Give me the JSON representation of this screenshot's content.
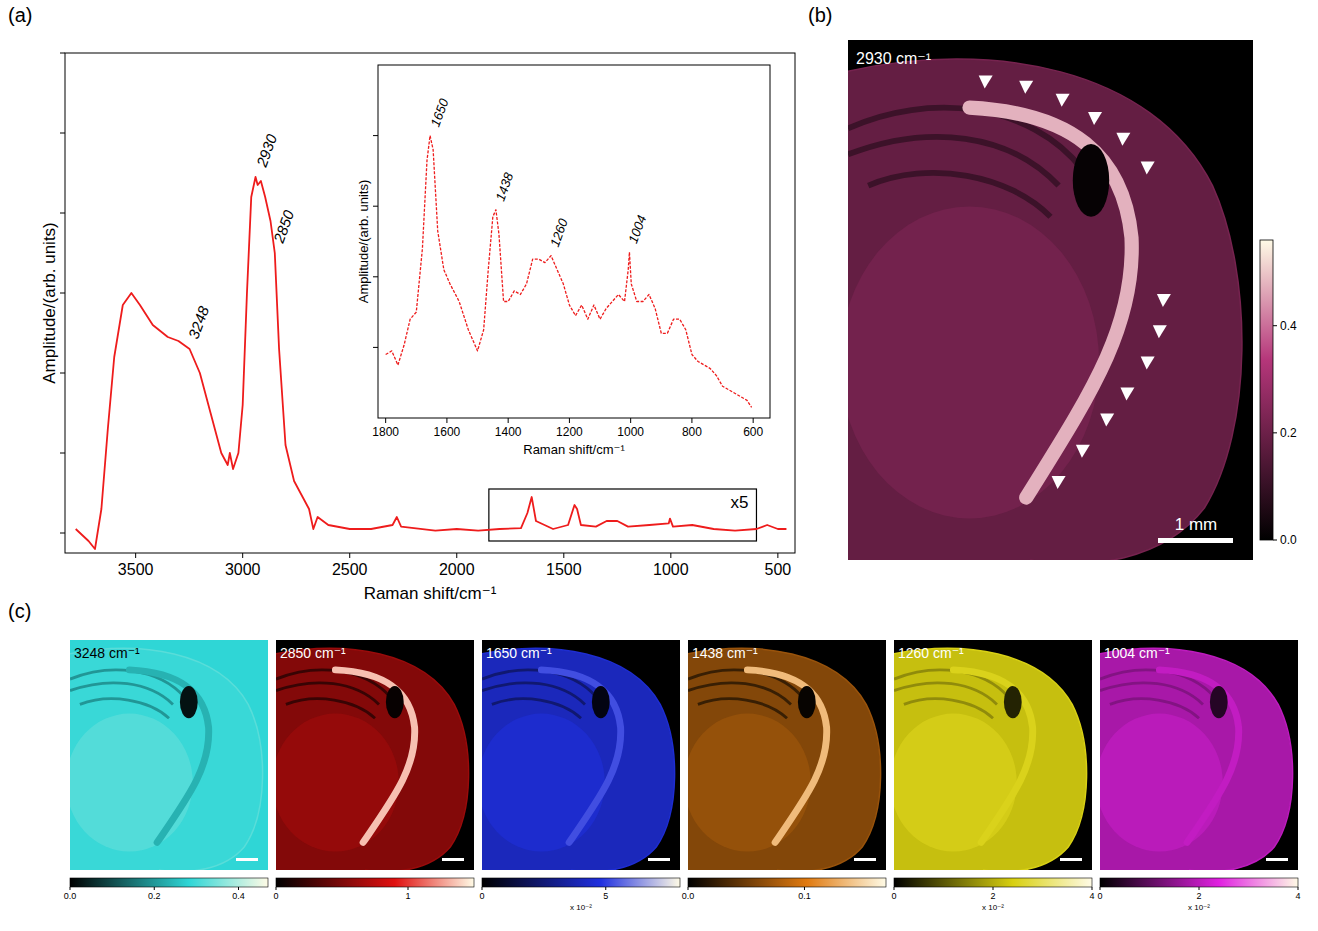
{
  "panel_labels": [
    "(a)",
    "(b)",
    "(c)"
  ],
  "chart_data": [
    {
      "type": "line",
      "x_label": "Raman shift/cm⁻¹",
      "y_label": "Amplitude/(arb. units)",
      "xlim": [
        3830,
        420
      ],
      "xticks": [
        3500,
        3000,
        2500,
        2000,
        1500,
        1000,
        500
      ],
      "ylim": [
        -0.25,
        6
      ],
      "yticks": [
        0,
        1,
        2,
        3,
        4,
        5,
        6
      ],
      "tick_labels": "x",
      "color": "#ee1c1c",
      "x": [
        3780,
        3720,
        3690,
        3660,
        3630,
        3600,
        3560,
        3520,
        3480,
        3420,
        3350,
        3300,
        3248,
        3200,
        3150,
        3100,
        3070,
        3060,
        3045,
        3020,
        3000,
        2980,
        2960,
        2940,
        2930,
        2915,
        2895,
        2870,
        2850,
        2830,
        2800,
        2760,
        2720,
        2690,
        2670,
        2650,
        2600,
        2500,
        2400,
        2300,
        2280,
        2260,
        2100,
        2000,
        1900,
        1800,
        1700,
        1670,
        1650,
        1630,
        1550,
        1480,
        1450,
        1438,
        1420,
        1350,
        1300,
        1250,
        1200,
        1100,
        1010,
        1004,
        990,
        900,
        800,
        700,
        600,
        550,
        500,
        460
      ],
      "values": [
        0.05,
        -0.1,
        -0.2,
        0.3,
        1.3,
        2.2,
        2.85,
        3.0,
        2.85,
        2.6,
        2.45,
        2.4,
        2.3,
        2.0,
        1.5,
        1.0,
        0.85,
        1.0,
        0.8,
        1.0,
        1.6,
        3.0,
        4.2,
        4.45,
        4.35,
        4.4,
        4.2,
        3.9,
        3.5,
        2.3,
        1.1,
        0.65,
        0.45,
        0.3,
        0.05,
        0.2,
        0.1,
        0.05,
        0.05,
        0.1,
        0.2,
        0.08,
        0.03,
        0.05,
        0.03,
        0.05,
        0.06,
        0.25,
        0.45,
        0.15,
        0.05,
        0.1,
        0.35,
        0.3,
        0.1,
        0.08,
        0.15,
        0.15,
        0.08,
        0.1,
        0.12,
        0.18,
        0.08,
        0.1,
        0.05,
        0.03,
        0.05,
        0.1,
        0.05,
        0.05
      ],
      "annotations": [
        {
          "x": 3248,
          "label": "3248"
        },
        {
          "x": 2930,
          "label": "2930"
        },
        {
          "x": 2850,
          "label": "2850"
        }
      ],
      "box": {
        "xlim": [
          1850,
          600
        ],
        "ylim": [
          -0.1,
          0.55
        ],
        "label": "x5"
      }
    },
    {
      "type": "line",
      "line_style": "dashed",
      "x_label": "Raman shift/cm⁻¹",
      "y_label": "Amplitude/(arb. units)",
      "xlim": [
        1825,
        545
      ],
      "xticks": [
        1800,
        1600,
        1400,
        1200,
        1000,
        800,
        600
      ],
      "ylim": [
        0,
        5
      ],
      "yticks": [
        1,
        2,
        3,
        4
      ],
      "tick_labels": "x",
      "color": "#ee1c1c",
      "x": [
        1800,
        1780,
        1760,
        1740,
        1720,
        1700,
        1680,
        1665,
        1655,
        1645,
        1630,
        1610,
        1590,
        1560,
        1530,
        1500,
        1480,
        1465,
        1450,
        1440,
        1430,
        1415,
        1400,
        1380,
        1360,
        1340,
        1320,
        1300,
        1280,
        1260,
        1240,
        1220,
        1200,
        1180,
        1160,
        1140,
        1120,
        1100,
        1080,
        1060,
        1040,
        1020,
        1008,
        1004,
        998,
        980,
        960,
        940,
        920,
        900,
        880,
        860,
        840,
        820,
        800,
        780,
        760,
        740,
        720,
        700,
        680,
        660,
        640,
        620,
        605
      ],
      "values": [
        0.9,
        0.95,
        0.75,
        1.03,
        1.4,
        1.5,
        2.4,
        3.65,
        4.0,
        3.8,
        2.65,
        2.1,
        1.9,
        1.65,
        1.25,
        0.95,
        1.25,
        2.1,
        2.85,
        2.95,
        2.6,
        1.65,
        1.65,
        1.8,
        1.75,
        1.9,
        2.25,
        2.25,
        2.2,
        2.3,
        2.1,
        1.9,
        1.6,
        1.45,
        1.6,
        1.4,
        1.6,
        1.4,
        1.55,
        1.65,
        1.75,
        1.65,
        2.1,
        2.35,
        1.9,
        1.65,
        1.65,
        1.75,
        1.55,
        1.2,
        1.2,
        1.4,
        1.4,
        1.25,
        0.9,
        0.8,
        0.75,
        0.7,
        0.6,
        0.45,
        0.4,
        0.35,
        0.3,
        0.25,
        0.15
      ],
      "annotations": [
        {
          "x": 1650,
          "label": "1650"
        },
        {
          "x": 1438,
          "label": "1438"
        },
        {
          "x": 1260,
          "label": "1260"
        },
        {
          "x": 1004,
          "label": "1004"
        }
      ]
    },
    {
      "type": "image",
      "title": "2930 cm⁻¹",
      "color": "#b5367a",
      "scale_bar": "1 mm",
      "colorbar": {
        "lim": [
          0,
          0.56
        ],
        "ticks": [
          {
            "value": 0,
            "label": "0.0"
          },
          0.2,
          0.4
        ]
      }
    },
    {
      "type": "image",
      "title": "3248 cm⁻¹",
      "color": "#2fd6d6",
      "colorbar": {
        "lim": [
          0,
          0.47
        ],
        "ticks": [
          {
            "value": 0,
            "label": "0.0"
          },
          0.2,
          0.4
        ]
      }
    },
    {
      "type": "image",
      "title": "2850 cm⁻¹",
      "color": "#e01010",
      "colorbar": {
        "lim": [
          0,
          1.5
        ],
        "ticks": [
          0,
          1
        ]
      }
    },
    {
      "type": "image",
      "title": "1650 cm⁻¹",
      "color": "#2030e0",
      "colorbar": {
        "lim": [
          0,
          8
        ],
        "ticks": [
          0,
          5
        ],
        "multiplier": "x 10⁻²"
      }
    },
    {
      "type": "image",
      "title": "1438 cm⁻¹",
      "color": "#e07a10",
      "colorbar": {
        "lim": [
          0,
          0.17
        ],
        "ticks": [
          {
            "value": 0,
            "label": "0.0"
          },
          0.1
        ]
      }
    },
    {
      "type": "image",
      "title": "1260 cm⁻¹",
      "color": "#d8d010",
      "colorbar": {
        "lim": [
          0,
          4
        ],
        "ticks": [
          0,
          2,
          4
        ],
        "multiplier": "x 10⁻²"
      }
    },
    {
      "type": "image",
      "title": "1004 cm⁻¹",
      "color": "#e020e0",
      "colorbar": {
        "lim": [
          0,
          4
        ],
        "ticks": [
          0,
          2,
          4
        ],
        "multiplier": "x 10⁻²"
      }
    }
  ]
}
